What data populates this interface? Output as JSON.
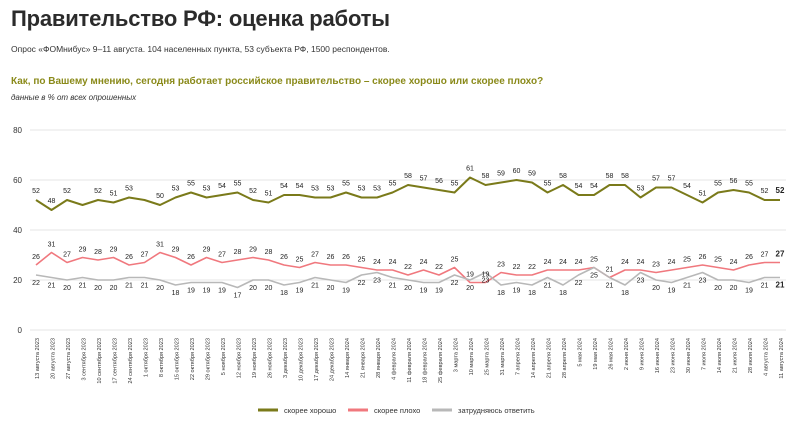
{
  "header": {
    "title": "Правительство РФ: оценка работы",
    "subtitle": "Опрос «ФОМнибус» 9–11 августа. 104 населенных пункта, 53 субъекта РФ, 1500 респондентов.",
    "question": "Как, по Вашему мнению, сегодня работает российское правительство – скорее хорошо или скорее плохо?",
    "note": "данные в % от всех опрошенных"
  },
  "chart_data": {
    "type": "line",
    "x": [
      "13 августа 2023",
      "20 августа 2023",
      "27 августа 2023",
      "3 сентября 2023",
      "10 сентября 2023",
      "17 сентября 2023",
      "24 сентября 2023",
      "1 октября 2023",
      "8 октября 2023",
      "15 октября 2023",
      "22 октября 2023",
      "29 октября 2023",
      "5 ноября 2023",
      "12 ноября 2023",
      "19 ноября 2023",
      "26 ноября 2023",
      "3 декабря 2023",
      "10 декабря 2023",
      "17 декабря 2023",
      "24 декабря 2023",
      "14 января 2024",
      "21 января 2024",
      "28 января 2024",
      "4 февраля 2024",
      "11 февраля 2024",
      "18 февраля 2024",
      "25 февраля 2024",
      "3 марта 2024",
      "10 марта 2024",
      "25 марта 2024",
      "31 марта 2024",
      "7 апреля 2024",
      "14 апреля 2024",
      "21 апреля 2024",
      "28 апреля 2024",
      "5 мая 2024",
      "19 мая 2024",
      "26 мая 2024",
      "2 июня 2024",
      "9 июня 2024",
      "16 июня 2024",
      "23 июня 2024",
      "30 июня 2024",
      "7 июля 2024",
      "14 июля 2024",
      "21 июля 2024",
      "28 июля 2024",
      "4 августа 2024",
      "11 августа 2024"
    ],
    "ylim": [
      0,
      80
    ],
    "yticks": [
      0,
      20,
      40,
      60,
      80
    ],
    "grid": true,
    "legend_position": "bottom",
    "series": [
      {
        "name": "скорее хорошо",
        "color": "#7a7a1a",
        "values": [
          52,
          48,
          52,
          50,
          52,
          51,
          53,
          52,
          50,
          53,
          55,
          53,
          54,
          55,
          52,
          51,
          54,
          54,
          53,
          53,
          55,
          53,
          53,
          55,
          58,
          57,
          56,
          55,
          61,
          58,
          59,
          60,
          59,
          55,
          58,
          54,
          54,
          58,
          58,
          53,
          57,
          57,
          54,
          51,
          55,
          56,
          55,
          52,
          52
        ]
      },
      {
        "name": "скорее плохо",
        "color": "#f0787e",
        "values": [
          26,
          31,
          27,
          29,
          28,
          29,
          26,
          27,
          31,
          29,
          26,
          29,
          27,
          28,
          29,
          28,
          26,
          25,
          27,
          26,
          26,
          25,
          24,
          24,
          22,
          24,
          22,
          25,
          19,
          19,
          23,
          22,
          22,
          24,
          24,
          24,
          25,
          21,
          24,
          24,
          23,
          24,
          25,
          26,
          25,
          24,
          26,
          27,
          27
        ]
      },
      {
        "name": "затрудняюсь ответить",
        "color": "#b8b8b8",
        "values": [
          22,
          21,
          20,
          21,
          20,
          20,
          21,
          21,
          20,
          18,
          19,
          19,
          19,
          17,
          20,
          20,
          18,
          19,
          21,
          20,
          19,
          22,
          23,
          21,
          20,
          19,
          19,
          22,
          20,
          23,
          18,
          19,
          18,
          21,
          18,
          22,
          25,
          21,
          18,
          23,
          20,
          19,
          21,
          23,
          20,
          20,
          19,
          21,
          21
        ]
      }
    ],
    "data_labels_shown": {
      "скорее хорошо": [
        0,
        1,
        2,
        4,
        5,
        6,
        8,
        9,
        10,
        11,
        12,
        13,
        14,
        15,
        16,
        17,
        18,
        19,
        20,
        21,
        22,
        23,
        24,
        25,
        26,
        27,
        28,
        29,
        30,
        31,
        32,
        33,
        34,
        35,
        36,
        37,
        38,
        39,
        40,
        41,
        42,
        43,
        44,
        45,
        46,
        47,
        48
      ],
      "скорее плохо": [
        0,
        1,
        2,
        3,
        4,
        5,
        6,
        7,
        8,
        9,
        10,
        11,
        12,
        13,
        14,
        15,
        16,
        17,
        18,
        19,
        20,
        21,
        22,
        23,
        24,
        25,
        26,
        27,
        28,
        29,
        30,
        31,
        32,
        33,
        34,
        35,
        36,
        37,
        38,
        39,
        40,
        41,
        42,
        43,
        44,
        45,
        46,
        47,
        48
      ],
      "затрудняюсь ответить": [
        0,
        1,
        2,
        3,
        4,
        5,
        6,
        7,
        8,
        9,
        10,
        11,
        12,
        13,
        14,
        15,
        16,
        17,
        18,
        19,
        20,
        21,
        22,
        23,
        24,
        25,
        26,
        27,
        28,
        29,
        30,
        31,
        32,
        33,
        34,
        35,
        36,
        37,
        38,
        39,
        40,
        41,
        42,
        43,
        44,
        45,
        46,
        47,
        48
      ]
    }
  }
}
